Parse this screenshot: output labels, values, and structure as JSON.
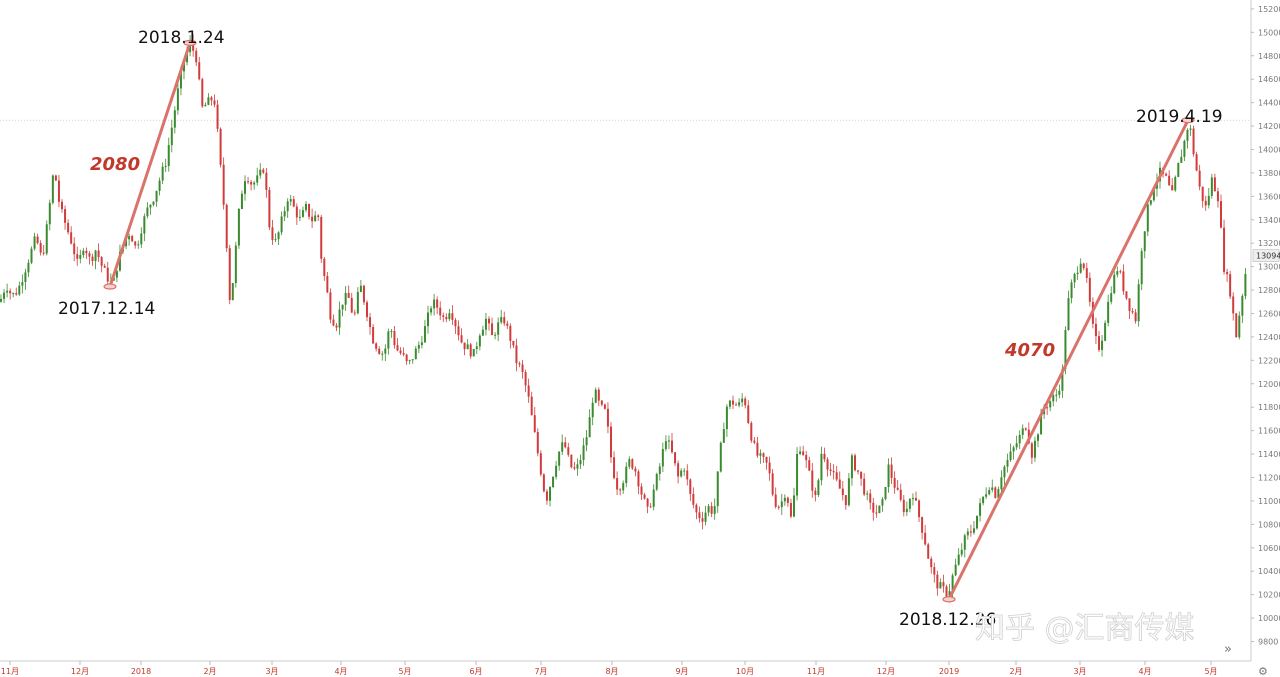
{
  "chart_data": {
    "type": "candlestick",
    "title": "",
    "xlabel": "",
    "ylabel": "",
    "ylim": [
      9800,
      15200
    ],
    "y_ticks": [
      9800,
      10000,
      10200,
      10400,
      10600,
      10800,
      11000,
      11200,
      11400,
      11600,
      11800,
      12000,
      12200,
      12400,
      12600,
      12800,
      13000,
      13200,
      13400,
      13600,
      13800,
      14000,
      14200,
      14400,
      14600,
      14800,
      15000,
      15200
    ],
    "x_ticks": [
      "11月",
      "12月",
      "2018",
      "2月",
      "3月",
      "4月",
      "5月",
      "6月",
      "7月",
      "8月",
      "9月",
      "10月",
      "11月",
      "12月",
      "2019",
      "2月",
      "3月",
      "4月",
      "5月"
    ],
    "current_price": "13094",
    "reference_line": 14250,
    "key_points": [
      {
        "date": "2017.12.14",
        "value": 12830
      },
      {
        "date": "2018.1.24",
        "value": 14910
      },
      {
        "date": "2018.12.26",
        "value": 10160
      },
      {
        "date": "2019.4.19",
        "value": 14250
      }
    ],
    "annotations": [
      {
        "label_date": "2018.1.24"
      },
      {
        "label_date": "2017.12.14"
      },
      {
        "label_date": "2018.12.26"
      },
      {
        "label_date": "2019.4.19"
      }
    ],
    "gains": [
      {
        "text": "2080",
        "from": "2017.12.14",
        "to": "2018.1.24"
      },
      {
        "text": "4070",
        "from": "2018.12.26",
        "to": "2019.4.19"
      }
    ],
    "path": [
      [
        0,
        12700
      ],
      [
        6,
        12850
      ],
      [
        12,
        12750
      ],
      [
        18,
        12800
      ],
      [
        24,
        12950
      ],
      [
        30,
        13100
      ],
      [
        36,
        13250
      ],
      [
        42,
        13050
      ],
      [
        48,
        13400
      ],
      [
        54,
        13850
      ],
      [
        60,
        13500
      ],
      [
        66,
        13350
      ],
      [
        72,
        13200
      ],
      [
        78,
        13000
      ],
      [
        84,
        13200
      ],
      [
        90,
        13050
      ],
      [
        96,
        13150
      ],
      [
        102,
        13000
      ],
      [
        108,
        12900
      ],
      [
        113,
        12840
      ],
      [
        118,
        13050
      ],
      [
        124,
        13200
      ],
      [
        130,
        13300
      ],
      [
        136,
        13150
      ],
      [
        142,
        13350
      ],
      [
        148,
        13500
      ],
      [
        154,
        13600
      ],
      [
        160,
        13750
      ],
      [
        166,
        13900
      ],
      [
        172,
        14200
      ],
      [
        178,
        14500
      ],
      [
        184,
        14750
      ],
      [
        190,
        14900
      ],
      [
        196,
        14800
      ],
      [
        202,
        14350
      ],
      [
        208,
        14400
      ],
      [
        214,
        14450
      ],
      [
        218,
        14100
      ],
      [
        222,
        13700
      ],
      [
        226,
        13300
      ],
      [
        230,
        12700
      ],
      [
        234,
        12950
      ],
      [
        238,
        13400
      ],
      [
        242,
        13650
      ],
      [
        246,
        13800
      ],
      [
        252,
        13700
      ],
      [
        258,
        13750
      ],
      [
        264,
        13850
      ],
      [
        270,
        13300
      ],
      [
        276,
        13200
      ],
      [
        282,
        13400
      ],
      [
        288,
        13600
      ],
      [
        294,
        13500
      ],
      [
        300,
        13400
      ],
      [
        306,
        13500
      ],
      [
        312,
        13400
      ],
      [
        318,
        13450
      ],
      [
        322,
        13000
      ],
      [
        326,
        12850
      ],
      [
        330,
        12600
      ],
      [
        336,
        12500
      ],
      [
        342,
        12700
      ],
      [
        348,
        12750
      ],
      [
        354,
        12550
      ],
      [
        360,
        12850
      ],
      [
        366,
        12650
      ],
      [
        372,
        12400
      ],
      [
        378,
        12300
      ],
      [
        384,
        12250
      ],
      [
        390,
        12500
      ],
      [
        396,
        12300
      ],
      [
        402,
        12250
      ],
      [
        408,
        12150
      ],
      [
        414,
        12250
      ],
      [
        420,
        12350
      ],
      [
        426,
        12500
      ],
      [
        432,
        12700
      ],
      [
        438,
        12650
      ],
      [
        444,
        12550
      ],
      [
        450,
        12650
      ],
      [
        456,
        12500
      ],
      [
        462,
        12350
      ],
      [
        468,
        12300
      ],
      [
        474,
        12250
      ],
      [
        480,
        12450
      ],
      [
        486,
        12550
      ],
      [
        492,
        12400
      ],
      [
        498,
        12500
      ],
      [
        504,
        12550
      ],
      [
        510,
        12400
      ],
      [
        516,
        12200
      ],
      [
        522,
        12100
      ],
      [
        528,
        11900
      ],
      [
        534,
        11600
      ],
      [
        540,
        11300
      ],
      [
        546,
        11000
      ],
      [
        552,
        11200
      ],
      [
        558,
        11400
      ],
      [
        564,
        11500
      ],
      [
        570,
        11300
      ],
      [
        576,
        11250
      ],
      [
        582,
        11400
      ],
      [
        588,
        11600
      ],
      [
        594,
        11950
      ],
      [
        600,
        11800
      ],
      [
        606,
        11750
      ],
      [
        612,
        11300
      ],
      [
        618,
        11100
      ],
      [
        624,
        11200
      ],
      [
        630,
        11350
      ],
      [
        636,
        11250
      ],
      [
        642,
        11050
      ],
      [
        648,
        10900
      ],
      [
        654,
        11100
      ],
      [
        660,
        11300
      ],
      [
        666,
        11550
      ],
      [
        672,
        11400
      ],
      [
        678,
        11200
      ],
      [
        684,
        11300
      ],
      [
        690,
        11050
      ],
      [
        696,
        10900
      ],
      [
        702,
        10850
      ],
      [
        708,
        10950
      ],
      [
        714,
        10900
      ],
      [
        720,
        11400
      ],
      [
        726,
        11800
      ],
      [
        732,
        11850
      ],
      [
        738,
        11800
      ],
      [
        744,
        11900
      ],
      [
        750,
        11600
      ],
      [
        756,
        11400
      ],
      [
        762,
        11350
      ],
      [
        768,
        11300
      ],
      [
        774,
        11000
      ],
      [
        780,
        10950
      ],
      [
        786,
        11100
      ],
      [
        792,
        10800
      ],
      [
        798,
        11500
      ],
      [
        804,
        11400
      ],
      [
        810,
        11200
      ],
      [
        816,
        11000
      ],
      [
        822,
        11450
      ],
      [
        828,
        11300
      ],
      [
        834,
        11200
      ],
      [
        840,
        11100
      ],
      [
        846,
        11000
      ],
      [
        852,
        11350
      ],
      [
        858,
        11250
      ],
      [
        864,
        11100
      ],
      [
        870,
        10950
      ],
      [
        876,
        10900
      ],
      [
        882,
        10950
      ],
      [
        888,
        11300
      ],
      [
        894,
        11150
      ],
      [
        900,
        11000
      ],
      [
        906,
        10900
      ],
      [
        912,
        11100
      ],
      [
        918,
        10900
      ],
      [
        924,
        10700
      ],
      [
        930,
        10450
      ],
      [
        936,
        10300
      ],
      [
        942,
        10250
      ],
      [
        948,
        10200
      ],
      [
        954,
        10400
      ],
      [
        960,
        10550
      ],
      [
        966,
        10700
      ],
      [
        972,
        10750
      ],
      [
        978,
        10900
      ],
      [
        984,
        11050
      ],
      [
        990,
        11150
      ],
      [
        996,
        11050
      ],
      [
        1002,
        11250
      ],
      [
        1008,
        11350
      ],
      [
        1014,
        11450
      ],
      [
        1020,
        11550
      ],
      [
        1026,
        11650
      ],
      [
        1032,
        11400
      ],
      [
        1038,
        11600
      ],
      [
        1044,
        11800
      ],
      [
        1050,
        11850
      ],
      [
        1056,
        11900
      ],
      [
        1062,
        12050
      ],
      [
        1066,
        12550
      ],
      [
        1070,
        12800
      ],
      [
        1076,
        12950
      ],
      [
        1082,
        13100
      ],
      [
        1088,
        12800
      ],
      [
        1094,
        12400
      ],
      [
        1100,
        12300
      ],
      [
        1106,
        12600
      ],
      [
        1112,
        12850
      ],
      [
        1118,
        13000
      ],
      [
        1124,
        12800
      ],
      [
        1130,
        12650
      ],
      [
        1136,
        12550
      ],
      [
        1142,
        13200
      ],
      [
        1148,
        13500
      ],
      [
        1154,
        13700
      ],
      [
        1160,
        13800
      ],
      [
        1166,
        13750
      ],
      [
        1172,
        13600
      ],
      [
        1178,
        13850
      ],
      [
        1184,
        14050
      ],
      [
        1189,
        14250
      ],
      [
        1194,
        13950
      ],
      [
        1200,
        13650
      ],
      [
        1206,
        13500
      ],
      [
        1212,
        13750
      ],
      [
        1218,
        13600
      ],
      [
        1224,
        13000
      ],
      [
        1230,
        12800
      ],
      [
        1236,
        12400
      ],
      [
        1242,
        12750
      ],
      [
        1248,
        13094
      ]
    ]
  },
  "ui": {
    "watermark": "知乎 @汇商传媒",
    "expand_icon": "»",
    "settings_icon": "⚙"
  }
}
